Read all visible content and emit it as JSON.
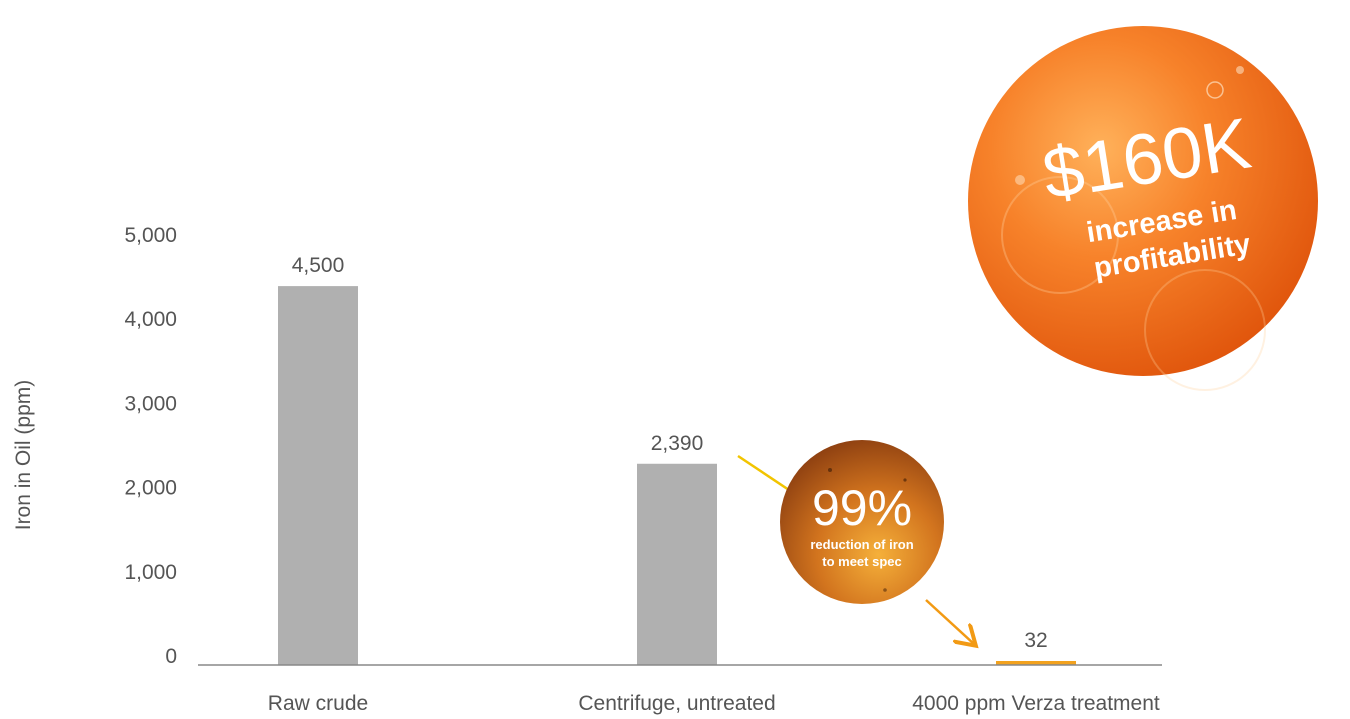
{
  "chart_data": {
    "type": "bar",
    "categories": [
      "Raw crude",
      "Centrifuge, untreated",
      "4000 ppm Verza treatment"
    ],
    "values": [
      4500,
      2390,
      32
    ],
    "data_labels": [
      "4,500",
      "2,390",
      "32"
    ],
    "ylabel": "Iron in Oil (ppm)",
    "ylim": [
      0,
      5000
    ],
    "yticks": [
      0,
      1000,
      2000,
      3000,
      4000,
      5000
    ],
    "ytick_labels": [
      "0",
      "1,000",
      "2,000",
      "3,000",
      "4,000",
      "5,000"
    ],
    "grid": false,
    "bar_colors": [
      "#b0b0b0",
      "#b0b0b0",
      "#f2a21e"
    ]
  },
  "callouts": {
    "profit": {
      "value": "$160K",
      "line1": "increase in",
      "line2": "profitability"
    },
    "reduction": {
      "value": "99%",
      "line1": "reduction of iron",
      "line2": "to meet spec"
    }
  },
  "colors": {
    "bar_gray": "#b0b0b0",
    "bar_accent": "#f2a21e",
    "arrow_yellow": "#f2c400",
    "arrow_orange": "#f29a14",
    "text_gray": "#555555",
    "axis_gray": "#888888"
  }
}
